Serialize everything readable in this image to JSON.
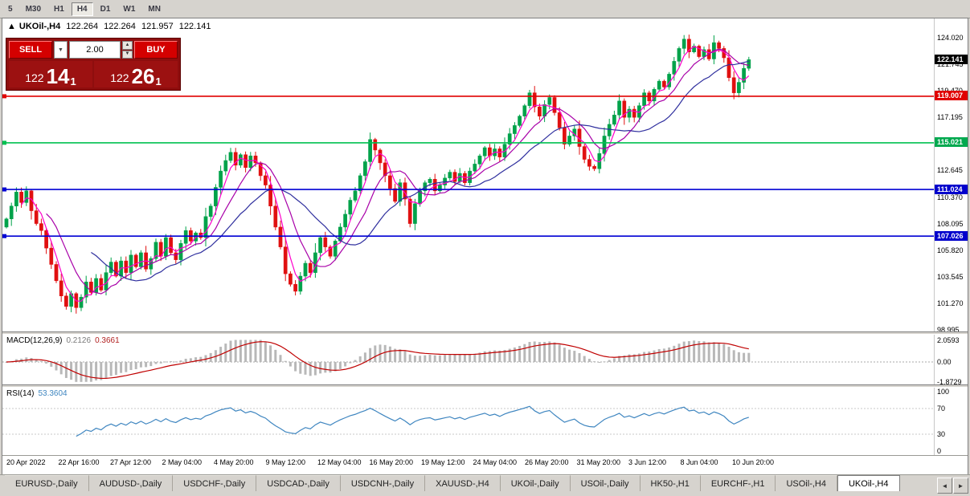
{
  "toolbar": {
    "timeframes": [
      "5",
      "M30",
      "H1",
      "H4",
      "D1",
      "W1",
      "MN"
    ],
    "active": "H4"
  },
  "chart": {
    "info": {
      "arrow": "▲",
      "title": "UKOil-,H4",
      "open": "122.264",
      "high": "122.264",
      "low": "121.957",
      "close": "122.141"
    },
    "trade_widget": {
      "sell_label": "SELL",
      "buy_label": "BUY",
      "volume": "2.00",
      "combo_arrow": "▼",
      "spin_up": "▲",
      "spin_down": "▼",
      "sell_price": {
        "prefix": "122",
        "big": "14",
        "sup": "1"
      },
      "buy_price": {
        "prefix": "122",
        "big": "26",
        "sup": "1"
      }
    },
    "price_axis": {
      "labels": [
        "124.020",
        "121.745",
        "119.470",
        "117.195",
        "114.920",
        "112.645",
        "110.370",
        "108.095",
        "105.820",
        "103.545",
        "101.270",
        "98.995"
      ]
    },
    "badges": [
      {
        "value": "122.141",
        "price": 122.141,
        "bg": "#000000"
      },
      {
        "value": "119.007",
        "price": 119.007,
        "bg": "#e00000"
      },
      {
        "value": "115.021",
        "price": 115.021,
        "bg": "#00a94f"
      },
      {
        "value": "111.024",
        "price": 111.024,
        "bg": "#0000cc"
      },
      {
        "value": "107.026",
        "price": 107.026,
        "bg": "#0000cc"
      }
    ],
    "hlines": [
      {
        "price": 119.007,
        "color": "#e00000"
      },
      {
        "price": 115.021,
        "color": "#00c050"
      },
      {
        "price": 111.024,
        "color": "#0000d4"
      },
      {
        "price": 107.026,
        "color": "#0000d4"
      }
    ]
  },
  "macd": {
    "header_label": "MACD(12,26,9)",
    "value1": "0.2126",
    "value2": "0.3661",
    "axis": [
      "2.0593",
      "0.00",
      "-1.8729"
    ]
  },
  "rsi": {
    "header_label": "RSI(14)",
    "value": "53.3604",
    "axis": [
      "100",
      "70",
      "30",
      "0"
    ],
    "levels": [
      70,
      30
    ]
  },
  "time_axis": {
    "labels": [
      "20 Apr 2022",
      "22 Apr 16:00",
      "27 Apr 12:00",
      "2 May 04:00",
      "4 May 20:00",
      "9 May 12:00",
      "12 May 04:00",
      "16 May 20:00",
      "19 May 12:00",
      "24 May 04:00",
      "26 May 20:00",
      "31 May 20:00",
      "3 Jun 12:00",
      "8 Jun 04:00",
      "10 Jun 20:00"
    ]
  },
  "tabs": {
    "items": [
      "EURUSD-,Daily",
      "AUDUSD-,Daily",
      "USDCHF-,Daily",
      "USDCAD-,Daily",
      "USDCNH-,Daily",
      "XAUUSD-,H4",
      "UKOil-,Daily",
      "USOil-,Daily",
      "HK50-,H1",
      "EURCHF-,H1",
      "USOil-,H4",
      "UKOil-,H4"
    ],
    "active": "UKOil-,H4",
    "scroll_left": "◄",
    "scroll_right": "►"
  },
  "chart_data": {
    "type": "candlestick",
    "symbol": "UKOil-",
    "timeframe": "H4",
    "y_range": [
      98.995,
      124.02
    ],
    "first_open": 107.8,
    "closes": [
      108.5,
      109.6,
      110.8,
      109.9,
      110.9,
      109.2,
      108.1,
      107.5,
      106.0,
      104.6,
      103.2,
      101.9,
      101.0,
      102.1,
      100.9,
      101.8,
      103.1,
      102.2,
      103.4,
      102.4,
      103.9,
      104.8,
      103.6,
      104.9,
      103.9,
      105.4,
      104.4,
      105.6,
      104.2,
      105.1,
      106.5,
      105.3,
      106.9,
      105.6,
      105.0,
      106.4,
      107.5,
      106.6,
      107.3,
      106.9,
      108.7,
      109.6,
      111.2,
      112.6,
      113.5,
      114.2,
      113.1,
      114.0,
      112.9,
      113.9,
      113.3,
      112.2,
      111.4,
      109.6,
      107.8,
      106.1,
      103.8,
      102.9,
      102.3,
      103.6,
      104.7,
      103.9,
      105.6,
      106.9,
      106.1,
      105.3,
      106.6,
      107.8,
      108.9,
      110.1,
      110.9,
      112.2,
      113.4,
      115.3,
      114.4,
      113.3,
      112.2,
      111.1,
      110.0,
      111.6,
      110.2,
      108.1,
      109.8,
      110.9,
      111.6,
      111.9,
      110.9,
      111.4,
      112.0,
      112.5,
      111.7,
      112.4,
      111.6,
      112.6,
      113.2,
      113.9,
      114.6,
      113.9,
      114.5,
      113.8,
      114.9,
      115.8,
      116.5,
      117.3,
      118.2,
      119.3,
      118.1,
      117.3,
      118.3,
      118.9,
      117.6,
      116.3,
      114.9,
      115.6,
      116.2,
      114.7,
      113.6,
      113.0,
      112.8,
      114.1,
      115.6,
      116.6,
      117.4,
      118.6,
      117.2,
      117.9,
      117.2,
      118.2,
      119.3,
      118.6,
      119.6,
      120.3,
      119.8,
      120.9,
      122.0,
      123.1,
      123.9,
      122.8,
      123.3,
      122.4,
      123.0,
      122.2,
      123.6,
      123.1,
      122.3,
      120.6,
      119.3,
      120.2,
      121.4,
      122.141
    ],
    "macd_scale": {
      "max": 2.0593,
      "min": -1.8729
    },
    "colors": {
      "up": "#00a24a",
      "down": "#e01010",
      "ma_fast": "#ff00cc",
      "ma_mid": "#a800a8",
      "ma_slow": "#2f2f9e",
      "macd_hist": "#b8b8b8",
      "macd_signal": "#c00000",
      "rsi": "#3f86c0"
    }
  }
}
